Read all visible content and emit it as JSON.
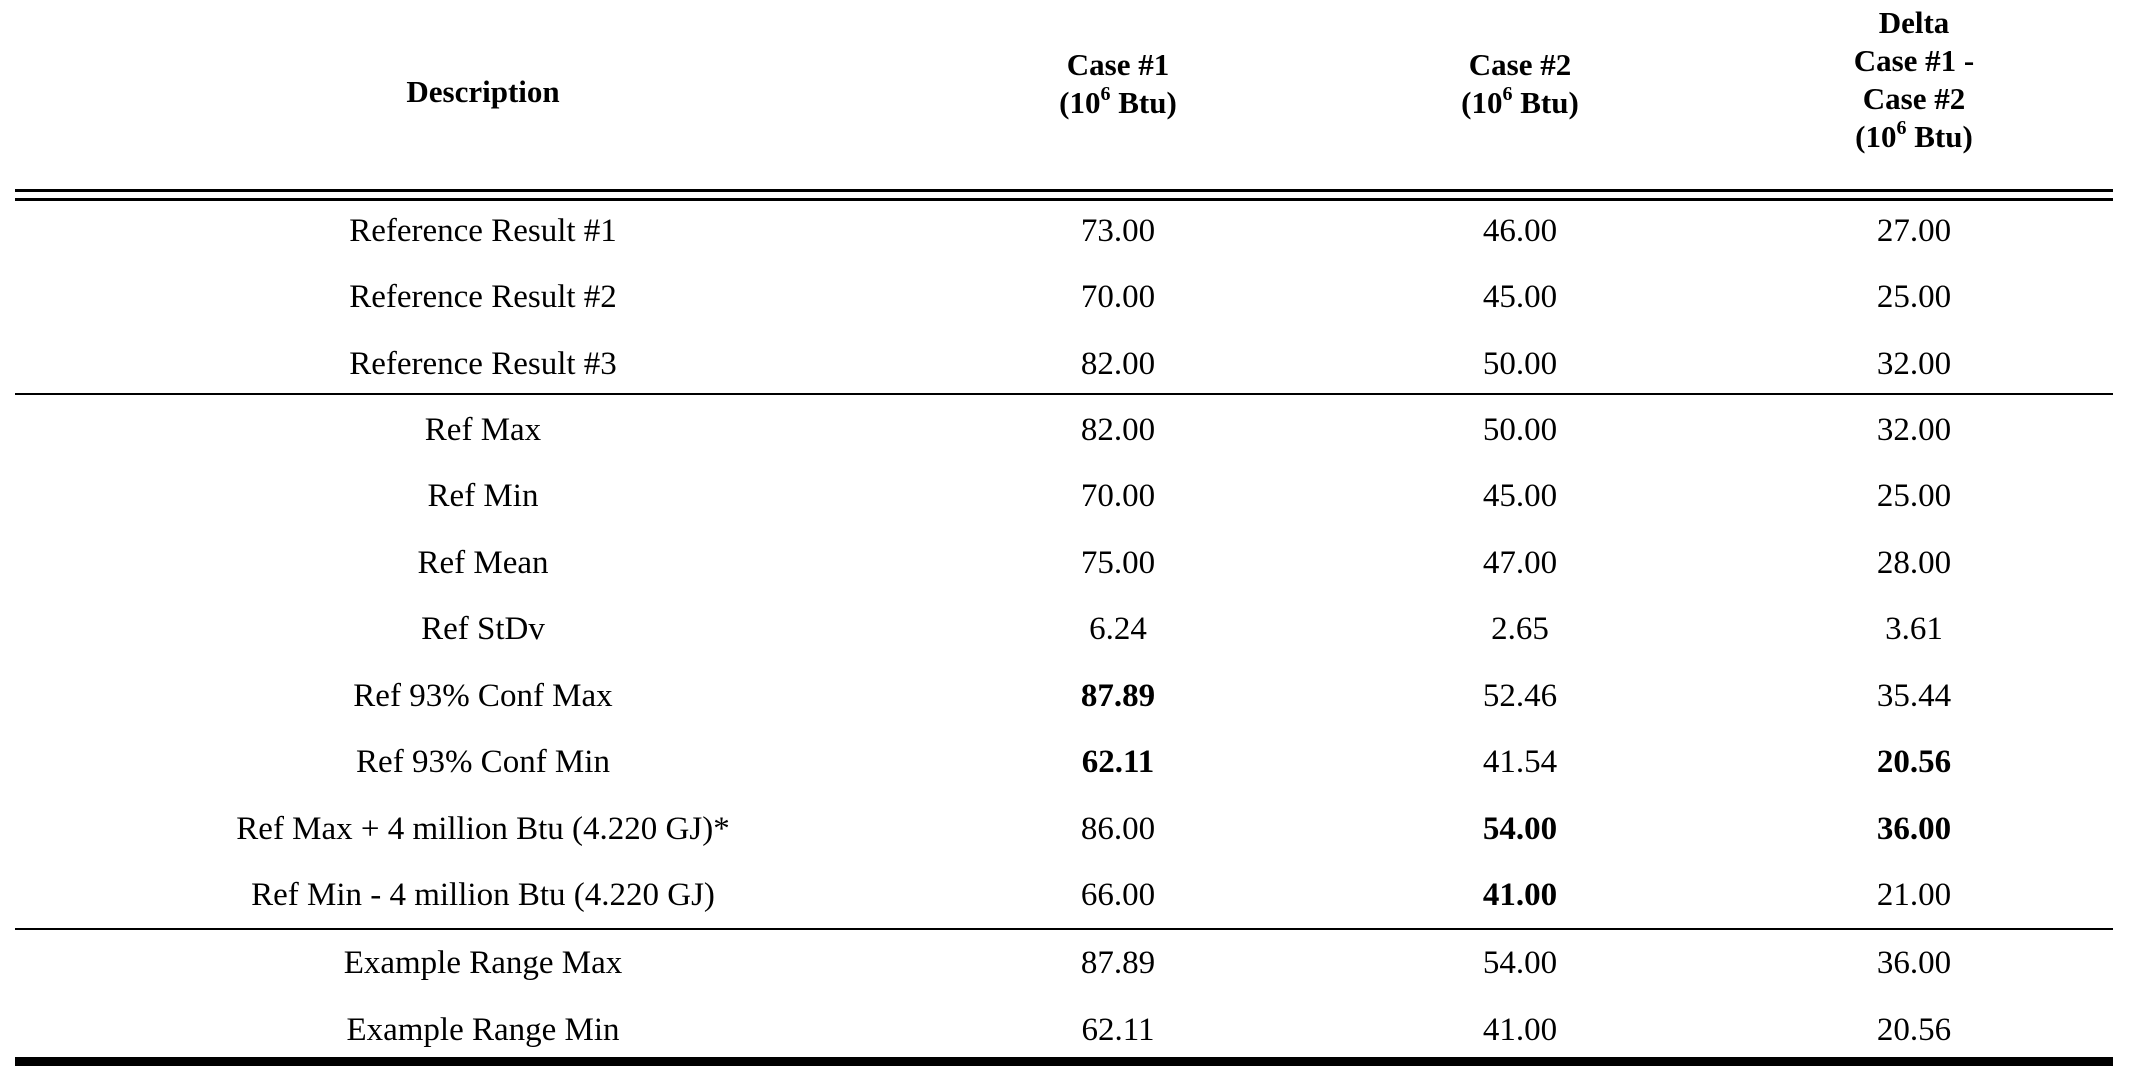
{
  "table": {
    "headers": {
      "description": "Description",
      "case1": {
        "line1": "Case #1",
        "unit_prefix": "(10",
        "unit_exp": "6",
        "unit_suffix": " Btu)"
      },
      "case2": {
        "line1": "Case #2",
        "unit_prefix": "(10",
        "unit_exp": "6",
        "unit_suffix": " Btu)"
      },
      "delta": {
        "line1": "Delta",
        "line2": "Case #1 -",
        "line3": "Case #2",
        "unit_prefix": "(10",
        "unit_exp": "6",
        "unit_suffix": " Btu)"
      }
    },
    "rows": [
      {
        "description": "Reference Result #1",
        "case1": "73.00",
        "case2": "46.00",
        "delta": "27.00",
        "bold": []
      },
      {
        "description": "Reference Result #2",
        "case1": "70.00",
        "case2": "45.00",
        "delta": "25.00",
        "bold": []
      },
      {
        "description": "Reference Result #3",
        "case1": "82.00",
        "case2": "50.00",
        "delta": "32.00",
        "bold": []
      },
      {
        "description": "Ref Max",
        "case1": "82.00",
        "case2": "50.00",
        "delta": "32.00",
        "bold": []
      },
      {
        "description": "Ref Min",
        "case1": "70.00",
        "case2": "45.00",
        "delta": "25.00",
        "bold": []
      },
      {
        "description": "Ref Mean",
        "case1": "75.00",
        "case2": "47.00",
        "delta": "28.00",
        "bold": []
      },
      {
        "description": "Ref StDv",
        "case1": "6.24",
        "case2": "2.65",
        "delta": "3.61",
        "bold": []
      },
      {
        "description": "Ref 93% Conf Max",
        "case1": "87.89",
        "case2": "52.46",
        "delta": "35.44",
        "bold": [
          "case1"
        ]
      },
      {
        "description": "Ref 93% Conf Min",
        "case1": "62.11",
        "case2": "41.54",
        "delta": "20.56",
        "bold": [
          "case1",
          "delta"
        ]
      },
      {
        "description": "Ref Max + 4 million Btu (4.220 GJ)*",
        "case1": "86.00",
        "case2": "54.00",
        "delta": "36.00",
        "bold": [
          "case2",
          "delta"
        ]
      },
      {
        "description": "Ref Min - 4 million Btu (4.220 GJ)",
        "case1": "66.00",
        "case2": "41.00",
        "delta": "21.00",
        "bold": [
          "case2"
        ]
      },
      {
        "description": "Example Range Max",
        "case1": "87.89",
        "case2": "54.00",
        "delta": "36.00",
        "bold": []
      },
      {
        "description": "Example Range Min",
        "case1": "62.11",
        "case2": "41.00",
        "delta": "20.56",
        "bold": []
      }
    ]
  }
}
